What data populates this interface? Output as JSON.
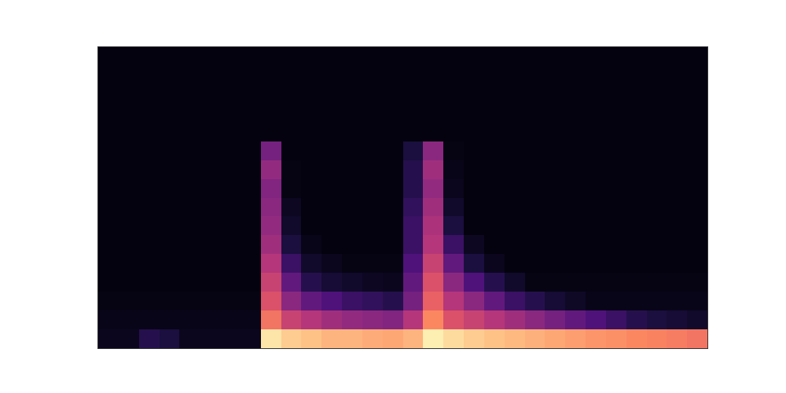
{
  "chart_data": {
    "type": "heatmap",
    "color": "magma",
    "tick_labels": false,
    "grid": false,
    "zlim": [
      0,
      1
    ],
    "cells": [
      [
        0.05,
        0.05,
        0.15,
        0.12,
        0.05,
        0.05,
        0.05,
        0.05,
        0.95,
        0.9,
        0.88,
        0.85,
        0.85,
        0.83,
        0.82,
        0.85,
        0.97,
        0.93,
        0.9,
        0.88,
        0.86,
        0.84,
        0.82,
        0.8,
        0.78,
        0.77,
        0.75,
        0.74,
        0.72,
        0.7
      ],
      [
        0.04,
        0.04,
        0.04,
        0.04,
        0.04,
        0.04,
        0.04,
        0.04,
        0.7,
        0.55,
        0.5,
        0.45,
        0.42,
        0.4,
        0.38,
        0.5,
        0.75,
        0.6,
        0.55,
        0.5,
        0.45,
        0.4,
        0.35,
        0.3,
        0.25,
        0.2,
        0.15,
        0.12,
        0.1,
        0.08
      ],
      [
        0.03,
        0.03,
        0.03,
        0.03,
        0.03,
        0.03,
        0.03,
        0.03,
        0.6,
        0.4,
        0.3,
        0.25,
        0.2,
        0.18,
        0.15,
        0.35,
        0.65,
        0.5,
        0.4,
        0.3,
        0.2,
        0.15,
        0.1,
        0.07,
        0.04,
        0.04,
        0.04,
        0.04,
        0.04,
        0.04
      ],
      [
        0.02,
        0.02,
        0.02,
        0.02,
        0.02,
        0.02,
        0.02,
        0.02,
        0.55,
        0.3,
        0.15,
        0.1,
        0.08,
        0.06,
        0.05,
        0.3,
        0.6,
        0.4,
        0.25,
        0.15,
        0.08,
        0.03,
        0.03,
        0.03,
        0.03,
        0.03,
        0.03,
        0.03,
        0.03,
        0.03
      ],
      [
        0.02,
        0.02,
        0.02,
        0.02,
        0.02,
        0.02,
        0.02,
        0.02,
        0.5,
        0.2,
        0.08,
        0.05,
        0.03,
        0.03,
        0.03,
        0.25,
        0.55,
        0.3,
        0.12,
        0.05,
        0.02,
        0.02,
        0.02,
        0.02,
        0.02,
        0.02,
        0.02,
        0.02,
        0.02,
        0.02
      ],
      [
        0.02,
        0.02,
        0.02,
        0.02,
        0.02,
        0.02,
        0.02,
        0.02,
        0.45,
        0.12,
        0.04,
        0.02,
        0.02,
        0.02,
        0.02,
        0.2,
        0.5,
        0.2,
        0.06,
        0.02,
        0.02,
        0.02,
        0.02,
        0.02,
        0.02,
        0.02,
        0.02,
        0.02,
        0.02,
        0.02
      ],
      [
        0.02,
        0.02,
        0.02,
        0.02,
        0.02,
        0.02,
        0.02,
        0.02,
        0.42,
        0.08,
        0.02,
        0.02,
        0.02,
        0.02,
        0.02,
        0.2,
        0.48,
        0.12,
        0.02,
        0.02,
        0.02,
        0.02,
        0.02,
        0.02,
        0.02,
        0.02,
        0.02,
        0.02,
        0.02,
        0.02
      ],
      [
        0.02,
        0.02,
        0.02,
        0.02,
        0.02,
        0.02,
        0.02,
        0.02,
        0.4,
        0.06,
        0.02,
        0.02,
        0.02,
        0.02,
        0.02,
        0.18,
        0.45,
        0.08,
        0.02,
        0.02,
        0.02,
        0.02,
        0.02,
        0.02,
        0.02,
        0.02,
        0.02,
        0.02,
        0.02,
        0.02
      ],
      [
        0.02,
        0.02,
        0.02,
        0.02,
        0.02,
        0.02,
        0.02,
        0.02,
        0.38,
        0.03,
        0.02,
        0.02,
        0.02,
        0.02,
        0.02,
        0.15,
        0.42,
        0.05,
        0.02,
        0.02,
        0.02,
        0.02,
        0.02,
        0.02,
        0.02,
        0.02,
        0.02,
        0.02,
        0.02,
        0.02
      ],
      [
        0.02,
        0.02,
        0.02,
        0.02,
        0.02,
        0.02,
        0.02,
        0.02,
        0.42,
        0.03,
        0.02,
        0.02,
        0.02,
        0.02,
        0.02,
        0.15,
        0.45,
        0.04,
        0.02,
        0.02,
        0.02,
        0.02,
        0.02,
        0.02,
        0.02,
        0.02,
        0.02,
        0.02,
        0.02,
        0.02
      ],
      [
        0.02,
        0.02,
        0.02,
        0.02,
        0.02,
        0.02,
        0.02,
        0.02,
        0.35,
        0.02,
        0.02,
        0.02,
        0.02,
        0.02,
        0.02,
        0.12,
        0.4,
        0.03,
        0.02,
        0.02,
        0.02,
        0.02,
        0.02,
        0.02,
        0.02,
        0.02,
        0.02,
        0.02,
        0.02,
        0.02
      ],
      [
        0.02,
        0.02,
        0.02,
        0.02,
        0.02,
        0.02,
        0.02,
        0.02,
        0.02,
        0.02,
        0.02,
        0.02,
        0.02,
        0.02,
        0.02,
        0.02,
        0.02,
        0.02,
        0.02,
        0.02,
        0.02,
        0.02,
        0.02,
        0.02,
        0.02,
        0.02,
        0.02,
        0.02,
        0.02,
        0.02
      ],
      [
        0.02,
        0.02,
        0.02,
        0.02,
        0.02,
        0.02,
        0.02,
        0.02,
        0.02,
        0.02,
        0.02,
        0.02,
        0.02,
        0.02,
        0.02,
        0.02,
        0.02,
        0.02,
        0.02,
        0.02,
        0.02,
        0.02,
        0.02,
        0.02,
        0.02,
        0.02,
        0.02,
        0.02,
        0.02,
        0.02
      ],
      [
        0.02,
        0.02,
        0.02,
        0.02,
        0.02,
        0.02,
        0.02,
        0.02,
        0.02,
        0.02,
        0.02,
        0.02,
        0.02,
        0.02,
        0.02,
        0.02,
        0.02,
        0.02,
        0.02,
        0.02,
        0.02,
        0.02,
        0.02,
        0.02,
        0.02,
        0.02,
        0.02,
        0.02,
        0.02,
        0.02
      ],
      [
        0.02,
        0.02,
        0.02,
        0.02,
        0.02,
        0.02,
        0.02,
        0.02,
        0.02,
        0.02,
        0.02,
        0.02,
        0.02,
        0.02,
        0.02,
        0.02,
        0.02,
        0.02,
        0.02,
        0.02,
        0.02,
        0.02,
        0.02,
        0.02,
        0.02,
        0.02,
        0.02,
        0.02,
        0.02,
        0.02
      ],
      [
        0.02,
        0.02,
        0.02,
        0.02,
        0.02,
        0.02,
        0.02,
        0.02,
        0.02,
        0.02,
        0.02,
        0.02,
        0.02,
        0.02,
        0.02,
        0.02,
        0.02,
        0.02,
        0.02,
        0.02,
        0.02,
        0.02,
        0.02,
        0.02,
        0.02,
        0.02,
        0.02,
        0.02,
        0.02,
        0.02
      ]
    ]
  }
}
